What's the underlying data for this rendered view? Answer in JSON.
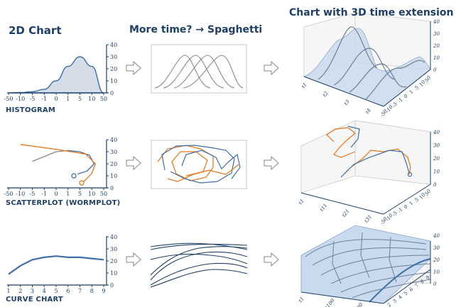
{
  "headings": {
    "col1": "2D Chart",
    "col2": "More time? → Spaghetti",
    "col3": "Chart with 3D time extension"
  },
  "row_labels": {
    "row1": "HISTOGRAM",
    "row2": "SCATTERPLOT (WORMPLOT)",
    "row3": "CURVE CHART"
  },
  "arrow_icon": "hollow-right-arrow",
  "colors": {
    "title": "#1f3f66",
    "blue_line": "#3f6fa6",
    "orange_line": "#e2761b",
    "gray_line": "#8a8a8a",
    "fill": "#d5dde8",
    "surface": "#c9d9ee"
  },
  "histogram": {
    "x_ticks": [
      "-50",
      "-10",
      "-5",
      "-1",
      "0",
      "1",
      "5",
      "10",
      "50"
    ],
    "y_ticks": [
      "0",
      "10",
      "20",
      "30",
      "40"
    ],
    "chart_data": {
      "type": "area",
      "x_positions": [
        0,
        1,
        2,
        3,
        4,
        5,
        6,
        7,
        8
      ],
      "values": [
        0,
        0.3,
        1,
        3,
        10,
        22,
        30,
        22,
        0
      ],
      "ylim": [
        0,
        40
      ]
    }
  },
  "scatter": {
    "x_ticks": [
      "-50",
      "-10",
      "-5",
      "-1",
      "0",
      "1",
      "5",
      "10",
      "50"
    ],
    "y_ticks": [
      "0",
      "10",
      "20",
      "30",
      "40"
    ],
    "chart_data": {
      "type": "scatter",
      "series": [
        {
          "color": "#8a8a8a",
          "points": [
            [
              2,
              22
            ],
            [
              4,
              30
            ],
            [
              5,
              31
            ]
          ]
        },
        {
          "color": "#3f6fa6",
          "points": [
            [
              5,
              31
            ],
            [
              6,
              30
            ],
            [
              6.8,
              27
            ],
            [
              7.2,
              20
            ],
            [
              6.6,
              14
            ],
            [
              5.8,
              11.5
            ]
          ]
        },
        {
          "color": "#e2761b",
          "points": [
            [
              1,
              36
            ],
            [
              4,
              32
            ],
            [
              6.5,
              28
            ],
            [
              7.3,
              20
            ],
            [
              7,
              12
            ],
            [
              6.3,
              5
            ]
          ]
        }
      ],
      "ylim": [
        0,
        40
      ]
    }
  },
  "curve": {
    "x_ticks": [
      "1",
      "2",
      "3",
      "4",
      "5",
      "6",
      "7",
      "8",
      "9"
    ],
    "y_ticks": [
      "0",
      "10",
      "20",
      "30",
      "40"
    ],
    "chart_data": {
      "type": "line",
      "x": [
        1,
        2,
        3,
        4,
        5,
        6,
        7,
        8,
        9
      ],
      "values": [
        9,
        16,
        21,
        23,
        24,
        23,
        23,
        22,
        21
      ],
      "ylim": [
        0,
        40
      ]
    }
  },
  "three_d": {
    "row1": {
      "y_ticks": [
        "0",
        "10",
        "20",
        "30",
        "40"
      ],
      "x_ticks": [
        "-50",
        "-10",
        "-5",
        "-1",
        "0",
        "1",
        "5",
        "10",
        "50"
      ],
      "t_ticks": [
        "t1",
        "t2",
        "t3",
        "t4"
      ]
    },
    "row2": {
      "y_ticks": [
        "0",
        "10",
        "20",
        "30",
        "40"
      ],
      "x_ticks": [
        "-50",
        "-10",
        "-5",
        "-1",
        "0",
        "1",
        "5",
        "10",
        "50"
      ],
      "t_ticks": [
        "t1",
        "t11",
        "t21",
        "t31"
      ]
    },
    "row3": {
      "y_ticks": [
        "0",
        "10",
        "20",
        "30",
        "40"
      ],
      "x_ticks": [
        "1",
        "2",
        "3",
        "4",
        "5",
        "6",
        "7",
        "8",
        "9"
      ],
      "t_ticks": [
        "t1",
        "t100",
        "t200"
      ]
    }
  }
}
